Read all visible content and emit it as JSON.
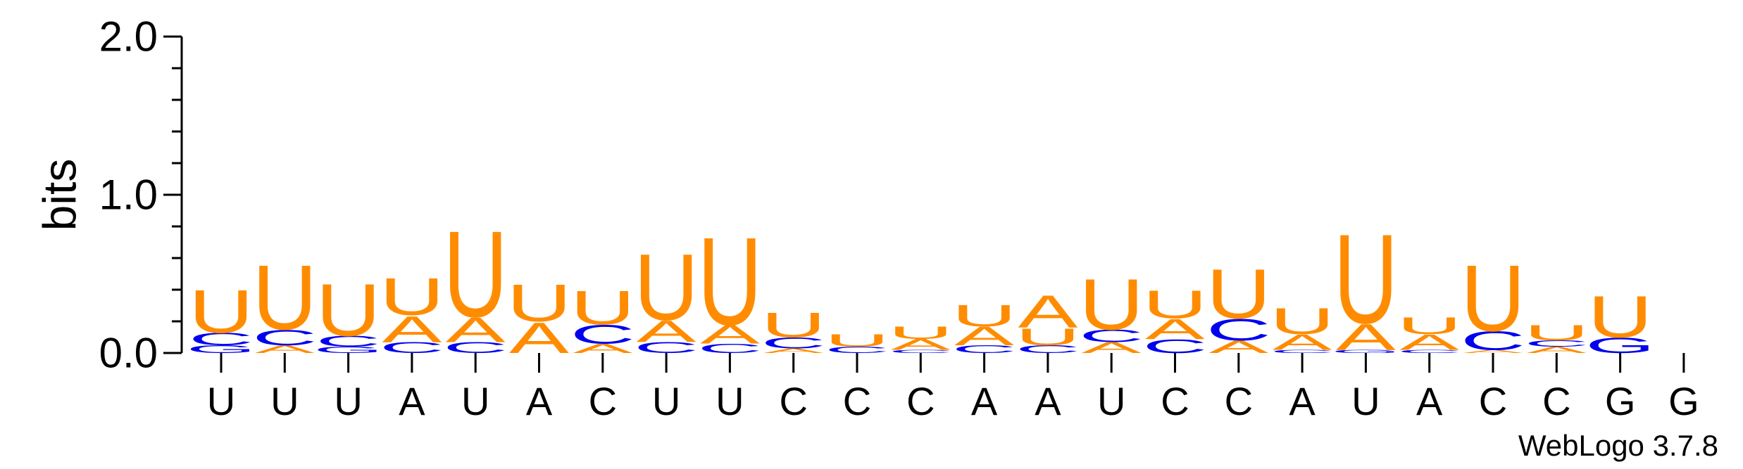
{
  "chart_data": {
    "type": "sequence-logo",
    "ylabel": "bits",
    "ylim": [
      0,
      2.0
    ],
    "yticks": [
      "0.0",
      "1.0",
      "2.0"
    ],
    "ytick_values": [
      0,
      1,
      2
    ],
    "letter_colors": {
      "A": "#ff8c00",
      "U": "#ff8c00",
      "C": "#0000ee",
      "G": "#0000ee"
    },
    "x_labels": [
      "U",
      "U",
      "U",
      "A",
      "U",
      "A",
      "C",
      "U",
      "U",
      "C",
      "C",
      "C",
      "A",
      "A",
      "U",
      "C",
      "C",
      "A",
      "U",
      "A",
      "C",
      "C",
      "G",
      "G"
    ],
    "positions": [
      {
        "pos": 1,
        "stack": [
          {
            "l": "G",
            "h": 0.05
          },
          {
            "l": "C",
            "h": 0.08
          },
          {
            "l": "U",
            "h": 0.28
          }
        ]
      },
      {
        "pos": 2,
        "stack": [
          {
            "l": "A",
            "h": 0.05
          },
          {
            "l": "C",
            "h": 0.1
          },
          {
            "l": "U",
            "h": 0.42
          }
        ]
      },
      {
        "pos": 3,
        "stack": [
          {
            "l": "G",
            "h": 0.04
          },
          {
            "l": "C",
            "h": 0.07
          },
          {
            "l": "U",
            "h": 0.34
          }
        ]
      },
      {
        "pos": 4,
        "stack": [
          {
            "l": "C",
            "h": 0.07
          },
          {
            "l": "A",
            "h": 0.17
          },
          {
            "l": "U",
            "h": 0.24
          }
        ]
      },
      {
        "pos": 5,
        "stack": [
          {
            "l": "C",
            "h": 0.07
          },
          {
            "l": "A",
            "h": 0.16
          },
          {
            "l": "U",
            "h": 0.56
          }
        ]
      },
      {
        "pos": 6,
        "stack": [
          {
            "l": "A",
            "h": 0.2
          },
          {
            "l": "U",
            "h": 0.24
          }
        ]
      },
      {
        "pos": 7,
        "stack": [
          {
            "l": "A",
            "h": 0.06
          },
          {
            "l": "C",
            "h": 0.12
          },
          {
            "l": "U",
            "h": 0.22
          }
        ]
      },
      {
        "pos": 8,
        "stack": [
          {
            "l": "C",
            "h": 0.07
          },
          {
            "l": "A",
            "h": 0.14
          },
          {
            "l": "U",
            "h": 0.43
          }
        ]
      },
      {
        "pos": 9,
        "stack": [
          {
            "l": "C",
            "h": 0.06
          },
          {
            "l": "A",
            "h": 0.12
          },
          {
            "l": "U",
            "h": 0.57
          }
        ]
      },
      {
        "pos": 10,
        "stack": [
          {
            "l": "A",
            "h": 0.03
          },
          {
            "l": "C",
            "h": 0.07
          },
          {
            "l": "U",
            "h": 0.16
          }
        ]
      },
      {
        "pos": 11,
        "stack": [
          {
            "l": "C",
            "h": 0.04
          },
          {
            "l": "U",
            "h": 0.08
          }
        ]
      },
      {
        "pos": 12,
        "stack": [
          {
            "l": "C",
            "h": 0.02
          },
          {
            "l": "A",
            "h": 0.07
          },
          {
            "l": "U",
            "h": 0.08
          }
        ]
      },
      {
        "pos": 13,
        "stack": [
          {
            "l": "C",
            "h": 0.05
          },
          {
            "l": "A",
            "h": 0.12
          },
          {
            "l": "U",
            "h": 0.14
          }
        ]
      },
      {
        "pos": 14,
        "stack": [
          {
            "l": "C",
            "h": 0.05
          },
          {
            "l": "U",
            "h": 0.11
          },
          {
            "l": "A",
            "h": 0.21
          }
        ]
      },
      {
        "pos": 15,
        "stack": [
          {
            "l": "A",
            "h": 0.07
          },
          {
            "l": "C",
            "h": 0.08
          },
          {
            "l": "U",
            "h": 0.33
          }
        ]
      },
      {
        "pos": 16,
        "stack": [
          {
            "l": "C",
            "h": 0.09
          },
          {
            "l": "A",
            "h": 0.13
          },
          {
            "l": "U",
            "h": 0.18
          }
        ]
      },
      {
        "pos": 17,
        "stack": [
          {
            "l": "A",
            "h": 0.08
          },
          {
            "l": "C",
            "h": 0.14
          },
          {
            "l": "U",
            "h": 0.32
          }
        ]
      },
      {
        "pos": 18,
        "stack": [
          {
            "l": "C",
            "h": 0.02
          },
          {
            "l": "A",
            "h": 0.1
          },
          {
            "l": "U",
            "h": 0.17
          }
        ]
      },
      {
        "pos": 19,
        "stack": [
          {
            "l": "G",
            "h": 0.02
          },
          {
            "l": "A",
            "h": 0.17
          },
          {
            "l": "U",
            "h": 0.58
          }
        ]
      },
      {
        "pos": 20,
        "stack": [
          {
            "l": "C",
            "h": 0.02
          },
          {
            "l": "A",
            "h": 0.1
          },
          {
            "l": "U",
            "h": 0.11
          }
        ]
      },
      {
        "pos": 21,
        "stack": [
          {
            "l": "A",
            "h": 0.02
          },
          {
            "l": "C",
            "h": 0.12
          },
          {
            "l": "U",
            "h": 0.43
          }
        ]
      },
      {
        "pos": 22,
        "stack": [
          {
            "l": "A",
            "h": 0.04
          },
          {
            "l": "C",
            "h": 0.04
          },
          {
            "l": "U",
            "h": 0.1
          }
        ]
      },
      {
        "pos": 23,
        "stack": [
          {
            "l": "G",
            "h": 0.1
          },
          {
            "l": "U",
            "h": 0.27
          }
        ]
      },
      {
        "pos": 24,
        "stack": []
      }
    ]
  },
  "watermark": "WebLogo 3.7.8"
}
